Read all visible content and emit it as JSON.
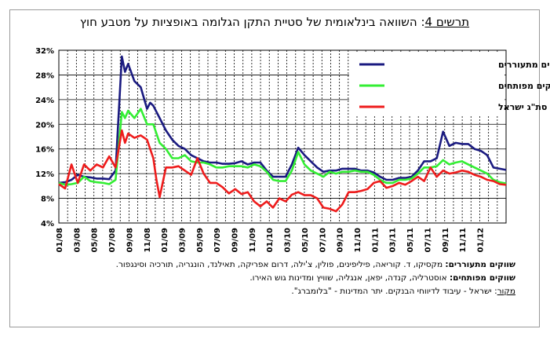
{
  "title": {
    "figure_label": "תרשים 4",
    "text": ": השוואה בינלאומית של סטיית התקן הגלומה באופציות על מטבע חוץ"
  },
  "notes": {
    "emerging_label": "שווקים מתעוררים:",
    "emerging_text": " מקסיקו, ד. קוריאה, פיליפינים, פולין, צ'ילה, דרום אפריקה, תאילנד, הונגריה, תורכיה וסינגפור.",
    "developed_label": "שווקים מפותחים:",
    "developed_text": " אוסטרליה, קנדה, יפאן, אנגליה, שוויץ ומדינות גוש האירו.",
    "source_label": "מקור",
    "source_text": ": ישראל - עיבוד לדיווחי הבנקים. יתר המדינות - \"בלומברג\"."
  },
  "colors": {
    "emerging": "#1a1a80",
    "developed": "#33ee33",
    "israel": "#ee1c1c"
  },
  "chart_data": {
    "type": "line",
    "y_ticks": [
      "32%",
      "28%",
      "24%",
      "20%",
      "16%",
      "12%",
      "8%",
      "4%"
    ],
    "ylim": [
      4,
      32
    ],
    "x_ticks": [
      "01/08",
      "03/08",
      "05/08",
      "07/08",
      "09/08",
      "11/08",
      "01/09",
      "03/09",
      "05/09",
      "07/09",
      "09/09",
      "11/09",
      "01/10",
      "03/10",
      "05/10",
      "07/10",
      "09/10",
      "11/10",
      "01/11",
      "03/11",
      "05/11",
      "07/11",
      "09/11",
      "11/11",
      "01/12"
    ],
    "grid": "horizontal solid, vertical dashed monthly",
    "legend_position": "top-right",
    "series": [
      {
        "name": "ממוצע שווקים מתעוררים",
        "color": "#1a1a80",
        "points": [
          [
            0,
            10.5
          ],
          [
            1,
            10.6
          ],
          [
            2,
            11.0
          ],
          [
            3,
            11.8
          ],
          [
            4,
            11.5
          ],
          [
            5,
            11.4
          ],
          [
            6,
            11.2
          ],
          [
            7,
            11.2
          ],
          [
            8,
            11.1
          ],
          [
            9,
            12.5
          ],
          [
            10,
            31.0
          ],
          [
            10.5,
            28.5
          ],
          [
            11,
            29.8
          ],
          [
            12,
            27.0
          ],
          [
            13,
            26.0
          ],
          [
            14,
            22.5
          ],
          [
            14.5,
            23.5
          ],
          [
            15,
            23.0
          ],
          [
            16,
            21.0
          ],
          [
            17,
            19.0
          ],
          [
            18,
            17.5
          ],
          [
            19,
            16.5
          ],
          [
            20,
            16.0
          ],
          [
            21,
            15.0
          ],
          [
            22,
            14.5
          ],
          [
            23,
            14.0
          ],
          [
            24,
            13.8
          ],
          [
            25,
            13.8
          ],
          [
            26,
            13.6
          ],
          [
            27,
            13.6
          ],
          [
            28,
            13.7
          ],
          [
            29,
            14.0
          ],
          [
            30,
            13.5
          ],
          [
            31,
            13.8
          ],
          [
            32,
            13.8
          ],
          [
            33,
            12.5
          ],
          [
            34,
            11.5
          ],
          [
            35,
            11.5
          ],
          [
            36,
            11.5
          ],
          [
            37,
            13.5
          ],
          [
            38,
            16.2
          ],
          [
            39,
            15.0
          ],
          [
            40,
            14.0
          ],
          [
            41,
            13.0
          ],
          [
            42,
            12.3
          ],
          [
            43,
            12.5
          ],
          [
            44,
            12.5
          ],
          [
            45,
            12.8
          ],
          [
            46,
            12.8
          ],
          [
            47,
            12.8
          ],
          [
            48,
            12.5
          ],
          [
            49,
            12.5
          ],
          [
            50,
            12.2
          ],
          [
            51,
            11.5
          ],
          [
            52,
            11.0
          ],
          [
            53,
            11.0
          ],
          [
            54,
            11.3
          ],
          [
            55,
            11.3
          ],
          [
            56,
            11.5
          ],
          [
            57,
            12.5
          ],
          [
            58,
            14.0
          ],
          [
            59,
            14.0
          ],
          [
            60,
            14.5
          ],
          [
            61,
            18.8
          ],
          [
            62,
            16.5
          ],
          [
            63,
            17.0
          ],
          [
            64,
            16.8
          ],
          [
            65,
            16.8
          ],
          [
            66,
            16.0
          ],
          [
            67,
            15.7
          ],
          [
            68,
            15.0
          ],
          [
            69,
            13.0
          ],
          [
            70,
            12.8
          ],
          [
            71,
            12.6
          ]
        ]
      },
      {
        "name": "ממוצע שווקים מפותחים",
        "color": "#33ee33",
        "points": [
          [
            0,
            10.5
          ],
          [
            1,
            10.2
          ],
          [
            2,
            10.3
          ],
          [
            3,
            10.5
          ],
          [
            4,
            11.5
          ],
          [
            5,
            10.8
          ],
          [
            6,
            10.6
          ],
          [
            7,
            10.5
          ],
          [
            8,
            10.3
          ],
          [
            9,
            11.0
          ],
          [
            10,
            22.0
          ],
          [
            10.5,
            21.0
          ],
          [
            11,
            22.2
          ],
          [
            12,
            21.0
          ],
          [
            13,
            22.5
          ],
          [
            14,
            20.0
          ],
          [
            15,
            20.0
          ],
          [
            16,
            17.0
          ],
          [
            17,
            16.0
          ],
          [
            18,
            14.5
          ],
          [
            19,
            14.5
          ],
          [
            20,
            15.0
          ],
          [
            21,
            14.0
          ],
          [
            22,
            13.8
          ],
          [
            23,
            13.8
          ],
          [
            24,
            13.5
          ],
          [
            25,
            13.0
          ],
          [
            26,
            13.0
          ],
          [
            27,
            13.2
          ],
          [
            28,
            13.2
          ],
          [
            29,
            13.2
          ],
          [
            30,
            13.0
          ],
          [
            31,
            13.5
          ],
          [
            32,
            13.2
          ],
          [
            33,
            12.3
          ],
          [
            34,
            11.0
          ],
          [
            35,
            10.8
          ],
          [
            36,
            10.8
          ],
          [
            37,
            12.5
          ],
          [
            38,
            15.5
          ],
          [
            39,
            13.5
          ],
          [
            40,
            12.5
          ],
          [
            41,
            12.0
          ],
          [
            42,
            11.5
          ],
          [
            43,
            12.3
          ],
          [
            44,
            12.0
          ],
          [
            45,
            12.3
          ],
          [
            46,
            12.3
          ],
          [
            47,
            12.5
          ],
          [
            48,
            12.3
          ],
          [
            49,
            12.3
          ],
          [
            50,
            11.8
          ],
          [
            51,
            11.0
          ],
          [
            52,
            10.5
          ],
          [
            53,
            10.5
          ],
          [
            54,
            11.0
          ],
          [
            55,
            11.0
          ],
          [
            56,
            11.2
          ],
          [
            57,
            12.0
          ],
          [
            58,
            13.0
          ],
          [
            59,
            13.0
          ],
          [
            60,
            13.2
          ],
          [
            61,
            14.2
          ],
          [
            62,
            13.5
          ],
          [
            63,
            13.8
          ],
          [
            64,
            14.0
          ],
          [
            65,
            13.5
          ],
          [
            66,
            13.0
          ],
          [
            67,
            12.5
          ],
          [
            68,
            12.0
          ],
          [
            69,
            11.0
          ],
          [
            70,
            10.6
          ],
          [
            71,
            10.4
          ]
        ]
      },
      {
        "name": "סת\"ג ישראל",
        "color": "#ee1c1c",
        "points": [
          [
            0,
            10.3
          ],
          [
            1,
            9.6
          ],
          [
            2,
            13.5
          ],
          [
            3,
            10.5
          ],
          [
            4,
            13.5
          ],
          [
            5,
            12.5
          ],
          [
            6,
            13.5
          ],
          [
            7,
            13.0
          ],
          [
            8,
            14.8
          ],
          [
            9,
            13.0
          ],
          [
            10,
            19.0
          ],
          [
            10.5,
            17.0
          ],
          [
            11,
            18.5
          ],
          [
            12,
            17.8
          ],
          [
            13,
            18.2
          ],
          [
            14,
            17.5
          ],
          [
            15,
            14.5
          ],
          [
            15.5,
            11.0
          ],
          [
            16,
            8.2
          ],
          [
            17,
            13.0
          ],
          [
            18,
            13.0
          ],
          [
            19,
            13.2
          ],
          [
            20,
            12.5
          ],
          [
            21,
            11.8
          ],
          [
            22,
            14.5
          ],
          [
            23,
            12.0
          ],
          [
            24,
            10.5
          ],
          [
            25,
            10.5
          ],
          [
            26,
            9.8
          ],
          [
            27,
            8.8
          ],
          [
            28,
            9.5
          ],
          [
            29,
            8.7
          ],
          [
            30,
            9.0
          ],
          [
            31,
            7.5
          ],
          [
            32,
            6.7
          ],
          [
            33,
            7.5
          ],
          [
            34,
            6.5
          ],
          [
            35,
            8.0
          ],
          [
            36,
            7.5
          ],
          [
            37,
            8.6
          ],
          [
            38,
            9.0
          ],
          [
            39,
            8.5
          ],
          [
            40,
            8.5
          ],
          [
            41,
            8.0
          ],
          [
            42,
            6.5
          ],
          [
            43,
            6.3
          ],
          [
            44,
            5.9
          ],
          [
            45,
            7.0
          ],
          [
            46,
            9.0
          ],
          [
            47,
            9.0
          ],
          [
            48,
            9.2
          ],
          [
            49,
            9.5
          ],
          [
            50,
            10.5
          ],
          [
            51,
            10.8
          ],
          [
            52,
            9.7
          ],
          [
            53,
            10.0
          ],
          [
            54,
            10.5
          ],
          [
            55,
            10.2
          ],
          [
            56,
            10.8
          ],
          [
            57,
            11.5
          ],
          [
            58,
            10.8
          ],
          [
            59,
            13.0
          ],
          [
            60,
            11.5
          ],
          [
            61,
            12.5
          ],
          [
            62,
            12.0
          ],
          [
            63,
            12.2
          ],
          [
            64,
            12.5
          ],
          [
            65,
            12.3
          ],
          [
            66,
            11.8
          ],
          [
            67,
            11.5
          ],
          [
            68,
            11.0
          ],
          [
            69,
            10.8
          ],
          [
            70,
            10.3
          ],
          [
            71,
            10.2
          ]
        ]
      }
    ]
  }
}
